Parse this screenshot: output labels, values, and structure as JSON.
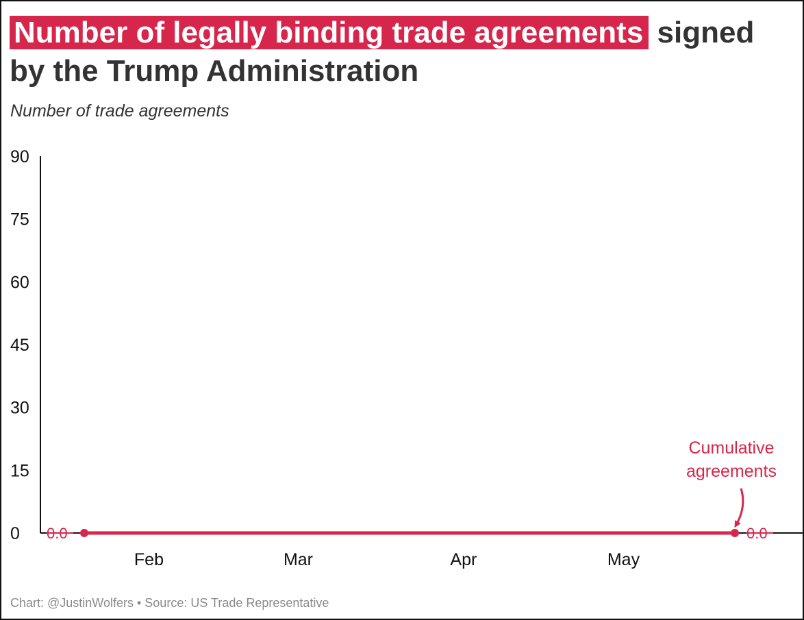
{
  "header": {
    "title_highlight": "Number of legally binding trade agreements",
    "title_rest": " signed by the Trump Administration",
    "subtitle": "Number of trade agreements"
  },
  "footer": {
    "caption": "Chart: @JustinWolfers • Source: US Trade Representative"
  },
  "colors": {
    "accent": "#d7264b",
    "text": "#333333",
    "axis": "#111111",
    "caption": "#8a8a8a"
  },
  "chart_data": {
    "type": "line",
    "title": "Number of legally binding trade agreements signed by the Trump Administration",
    "ylabel": "Number of trade agreements",
    "xlabel": "",
    "ylim": [
      0,
      90
    ],
    "yticks": [
      0,
      15,
      30,
      45,
      60,
      75,
      90
    ],
    "xticks": [
      "Feb",
      "Mar",
      "Apr",
      "May"
    ],
    "grid": false,
    "series": [
      {
        "name": "Cumulative agreements",
        "x": [
          "2025-01-20",
          "2025-05-22"
        ],
        "values": [
          0,
          0
        ],
        "start_label": "0.0",
        "end_label": "0.0"
      }
    ],
    "annotation": "Cumulative agreements"
  }
}
